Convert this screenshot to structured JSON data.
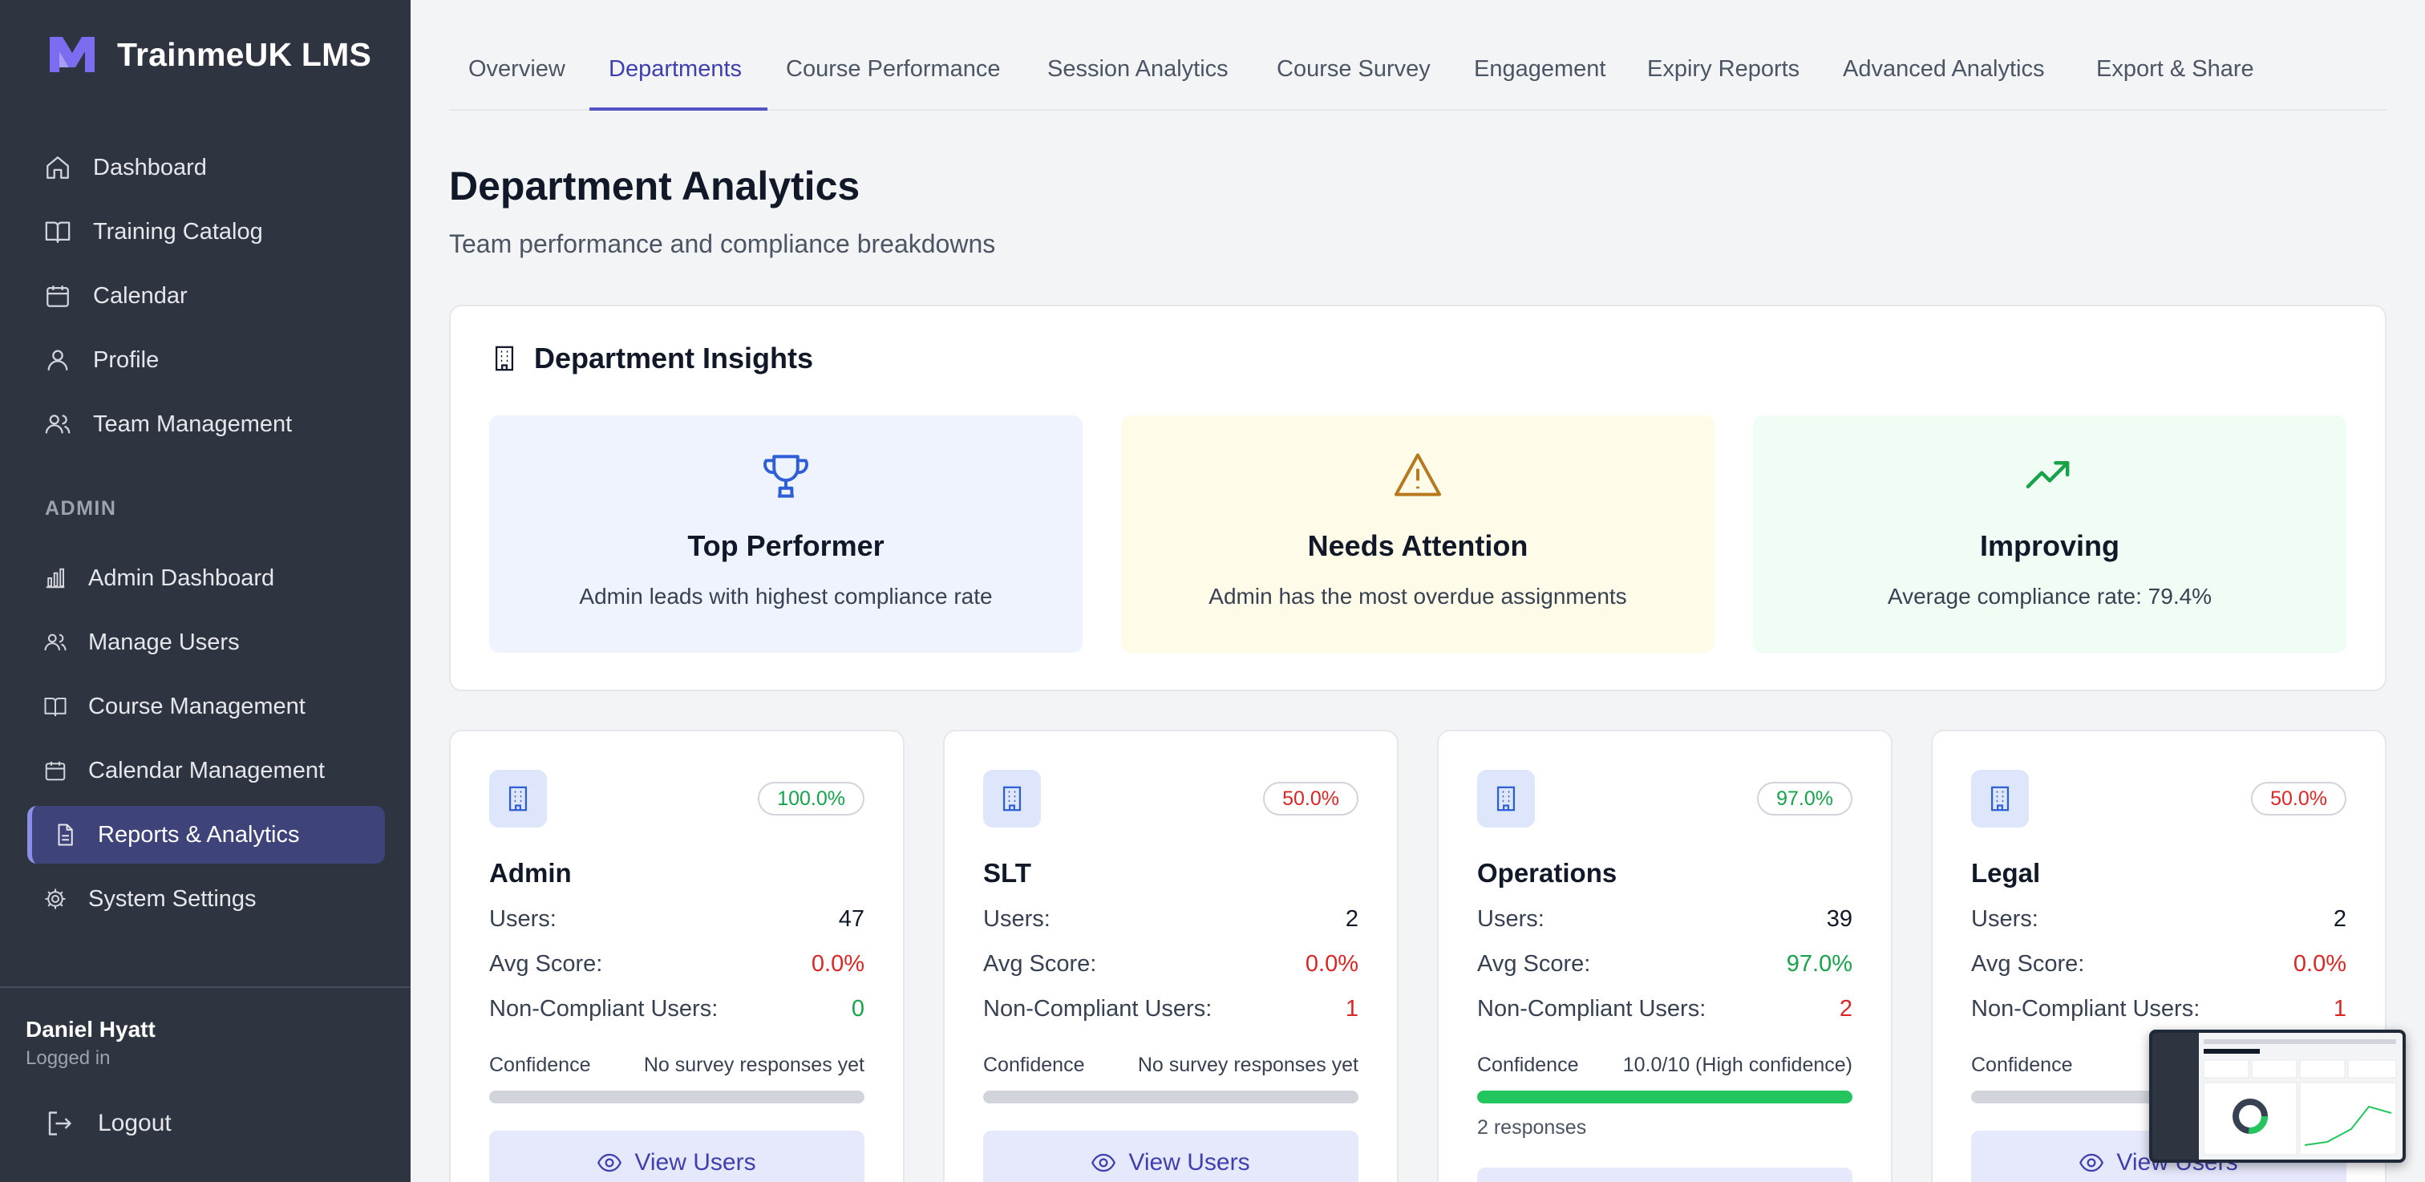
{
  "colors": {
    "sidebar_bg": "#2f3441",
    "accent": "#5353c3",
    "green": "#16a34a",
    "red": "#dc2626"
  },
  "brand": {
    "name": "TrainmeUK LMS",
    "logo_icon": "m-logo-icon"
  },
  "sidebar": {
    "items": [
      {
        "label": "Dashboard",
        "icon": "home-icon"
      },
      {
        "label": "Training Catalog",
        "icon": "book-icon"
      },
      {
        "label": "Calendar",
        "icon": "calendar-icon"
      },
      {
        "label": "Profile",
        "icon": "user-icon"
      },
      {
        "label": "Team Management",
        "icon": "users-icon"
      }
    ],
    "admin_section_label": "ADMIN",
    "admin_items": [
      {
        "label": "Admin Dashboard",
        "icon": "bar-chart-icon"
      },
      {
        "label": "Manage Users",
        "icon": "users-icon"
      },
      {
        "label": "Course Management",
        "icon": "book-icon"
      },
      {
        "label": "Calendar Management",
        "icon": "calendar-icon"
      },
      {
        "label": "Reports & Analytics",
        "icon": "file-icon",
        "active": true
      },
      {
        "label": "System Settings",
        "icon": "gear-icon"
      }
    ],
    "user": {
      "name": "Daniel Hyatt",
      "status": "Logged in"
    },
    "logout_label": "Logout"
  },
  "tabs": [
    "Overview",
    "Departments",
    "Course Performance",
    "Session Analytics",
    "Course Survey",
    "Engagement",
    "Expiry Reports",
    "Advanced Analytics",
    "Export & Share"
  ],
  "active_tab": "Departments",
  "page": {
    "title": "Department Analytics",
    "subtitle": "Team performance and compliance breakdowns"
  },
  "insights": {
    "heading": "Department Insights",
    "cards": [
      {
        "title": "Top Performer",
        "text": "Admin leads with highest compliance rate",
        "icon": "trophy-icon",
        "bg": "#eef3fe"
      },
      {
        "title": "Needs Attention",
        "text": "Admin has the most overdue assignments",
        "icon": "warning-icon",
        "bg": "#fefce8"
      },
      {
        "title": "Improving",
        "text": "Average compliance rate: 79.4%",
        "icon": "trending-up-icon",
        "bg": "#f0fdf4"
      }
    ]
  },
  "labels": {
    "users": "Users:",
    "avg_score": "Avg Score:",
    "non_compliant": "Non-Compliant Users:",
    "confidence": "Confidence",
    "view_users": "View Users"
  },
  "departments": [
    {
      "name": "Admin",
      "badge": "100.0%",
      "badge_color": "green",
      "users": "47",
      "avg_score": "0.0%",
      "avg_color": "red",
      "non_compliant": "0",
      "nc_color": "green",
      "confidence": "No survey responses yet",
      "confidence_fill": 0,
      "responses": ""
    },
    {
      "name": "SLT",
      "badge": "50.0%",
      "badge_color": "red",
      "users": "2",
      "avg_score": "0.0%",
      "avg_color": "red",
      "non_compliant": "1",
      "nc_color": "red",
      "confidence": "No survey responses yet",
      "confidence_fill": 0,
      "responses": ""
    },
    {
      "name": "Operations",
      "badge": "97.0%",
      "badge_color": "green",
      "users": "39",
      "avg_score": "97.0%",
      "avg_color": "green",
      "non_compliant": "2",
      "nc_color": "red",
      "confidence": "10.0/10 (High confidence)",
      "confidence_fill": 1.0,
      "responses": "2 responses"
    },
    {
      "name": "Legal",
      "badge": "50.0%",
      "badge_color": "red",
      "users": "2",
      "avg_score": "0.0%",
      "avg_color": "red",
      "non_compliant": "1",
      "nc_color": "red",
      "confidence": "No",
      "confidence_fill": 0,
      "responses": ""
    }
  ]
}
